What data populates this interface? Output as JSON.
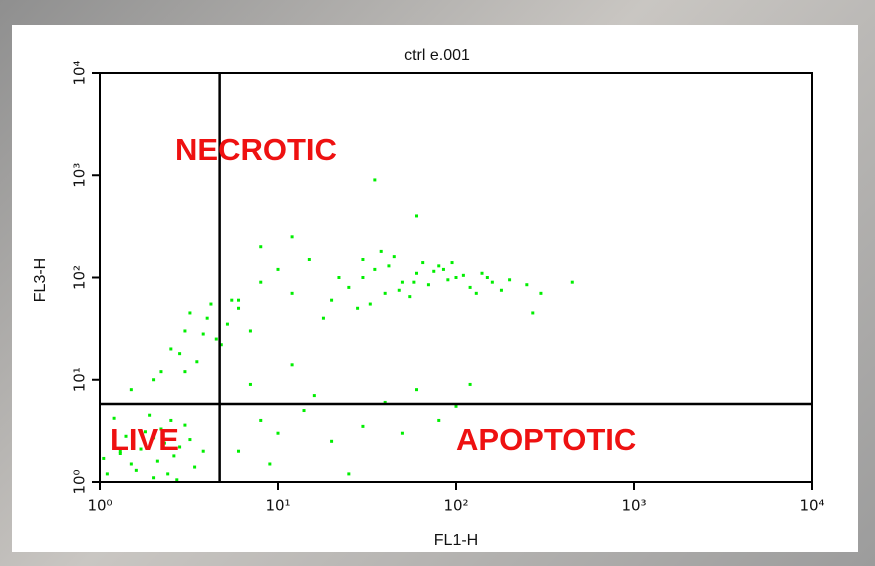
{
  "chart_data": {
    "type": "scatter",
    "title": "ctrl e.001",
    "x_label": "FL1-H",
    "y_label": "FL3-H",
    "xscale": "log",
    "yscale": "log",
    "xlim": [
      1,
      10000
    ],
    "ylim": [
      1,
      10000
    ],
    "xticks": [
      {
        "value": 1,
        "label": "10⁰"
      },
      {
        "value": 10,
        "label": "10¹"
      },
      {
        "value": 100,
        "label": "10²"
      },
      {
        "value": 1000,
        "label": "10³"
      },
      {
        "value": 10000,
        "label": "10⁴"
      }
    ],
    "yticks": [
      {
        "value": 1,
        "label": "10⁰"
      },
      {
        "value": 10,
        "label": "10¹"
      },
      {
        "value": 100,
        "label": "10²"
      },
      {
        "value": 1000,
        "label": "10³"
      },
      {
        "value": 10000,
        "label": "10⁴"
      }
    ],
    "grid": false,
    "color": "#00ee00",
    "gates": {
      "x": 4.7,
      "y": 5.8
    },
    "annotations": [
      "NECROTIC",
      "LIVE",
      "APOPTOTIC"
    ],
    "x": [
      1.1,
      1.3,
      1.5,
      1.8,
      2.0,
      2.3,
      2.6,
      3.0,
      1.2,
      1.6,
      2.1,
      2.8,
      3.4,
      1.4,
      1.9,
      2.4,
      3.2,
      1.05,
      1.7,
      2.2,
      2.7,
      3.8,
      1.3,
      2.0,
      2.5,
      2.5,
      3.0,
      3.5,
      4.0,
      4.5,
      5.2,
      3.2,
      2.8,
      4.8,
      6.0,
      3.8,
      5.5,
      2.2,
      7.0,
      4.2,
      20,
      25,
      30,
      35,
      40,
      50,
      60,
      70,
      80,
      90,
      100,
      120,
      140,
      160,
      180,
      30,
      45,
      55,
      65,
      85,
      110,
      130,
      28,
      38,
      48,
      75,
      95,
      150,
      200,
      250,
      22,
      33,
      42,
      58,
      300,
      6,
      8,
      10,
      12,
      15,
      18,
      8,
      12,
      270,
      450,
      35,
      60,
      6,
      8,
      10,
      14,
      20,
      30,
      40,
      60,
      80,
      120,
      9,
      16,
      25,
      50,
      100,
      1.5,
      2,
      3,
      7,
      12
    ],
    "y": [
      1.2,
      2.0,
      1.5,
      3.1,
      1.1,
      2.4,
      1.8,
      3.6,
      4.2,
      1.3,
      1.6,
      2.2,
      1.4,
      2.8,
      4.5,
      1.2,
      2.6,
      1.7,
      2.1,
      3.3,
      1.05,
      2.0,
      1.9,
      2.7,
      4.0,
      20,
      30,
      15,
      40,
      25,
      35,
      45,
      18,
      22,
      50,
      28,
      60,
      12,
      30,
      55,
      60,
      80,
      100,
      120,
      70,
      90,
      110,
      85,
      130,
      95,
      100,
      80,
      110,
      90,
      75,
      150,
      160,
      65,
      140,
      120,
      105,
      70,
      50,
      180,
      75,
      115,
      140,
      100,
      95,
      85,
      100,
      55,
      130,
      90,
      70,
      60,
      90,
      120,
      70,
      150,
      40,
      200,
      250,
      45,
      90,
      900,
      400,
      2,
      4,
      3,
      5,
      2.5,
      3.5,
      6,
      8,
      4,
      9,
      1.5,
      7,
      1.2,
      3,
      5.5,
      8,
      10,
      12,
      9,
      14
    ]
  }
}
